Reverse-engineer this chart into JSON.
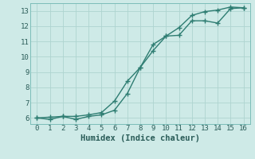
{
  "line1_x": [
    0,
    1,
    2,
    3,
    4,
    5,
    6,
    7,
    8,
    9,
    10,
    11,
    12,
    13,
    14,
    15,
    16
  ],
  "line1_y": [
    6.0,
    5.9,
    6.1,
    5.9,
    6.1,
    6.2,
    6.5,
    7.6,
    9.3,
    10.8,
    11.35,
    11.4,
    12.35,
    12.35,
    12.2,
    13.15,
    13.2
  ],
  "line2_x": [
    0,
    1,
    2,
    3,
    4,
    5,
    6,
    7,
    8,
    9,
    10,
    11,
    12,
    13,
    14,
    15,
    16
  ],
  "line2_y": [
    6.0,
    6.05,
    6.1,
    6.1,
    6.2,
    6.35,
    7.1,
    8.4,
    9.3,
    10.4,
    11.35,
    11.9,
    12.7,
    12.95,
    13.05,
    13.25,
    13.2
  ],
  "line_color": "#2e7d72",
  "bg_color": "#ceeae7",
  "grid_color": "#aed4d0",
  "xlabel": "Humidex (Indice chaleur)",
  "xlim": [
    -0.5,
    16.5
  ],
  "ylim": [
    5.6,
    13.5
  ],
  "yticks": [
    6,
    7,
    8,
    9,
    10,
    11,
    12,
    13
  ],
  "xticks": [
    0,
    1,
    2,
    3,
    4,
    5,
    6,
    7,
    8,
    9,
    10,
    11,
    12,
    13,
    14,
    15,
    16
  ],
  "marker": "+",
  "markersize": 4,
  "linewidth": 1.0,
  "label_fontsize": 7.5,
  "tick_fontsize": 6.5
}
